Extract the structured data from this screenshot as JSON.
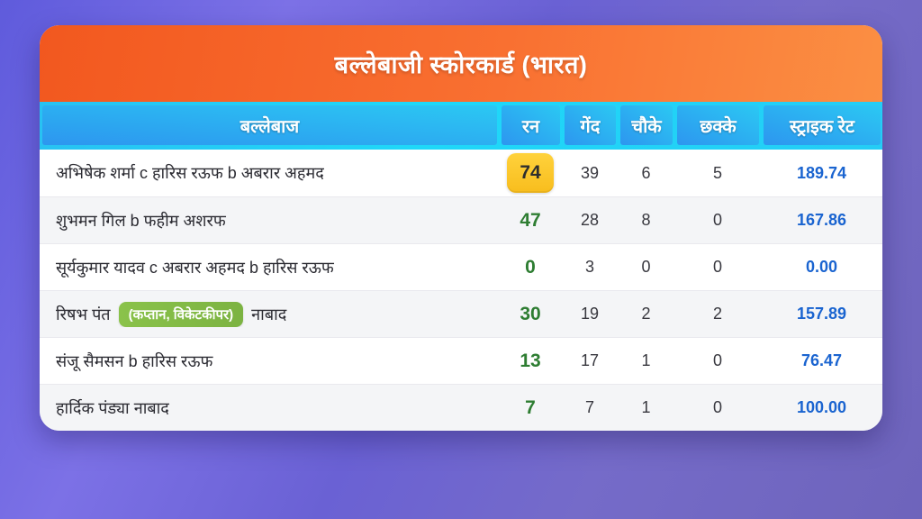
{
  "card": {
    "title": "बल्लेबाजी स्कोरकार्ड (भारत)"
  },
  "table": {
    "columns": [
      "बल्लेबाज",
      "रन",
      "गेंद",
      "चौके",
      "छक्के",
      "स्ट्राइक रेट"
    ],
    "rows": [
      {
        "name": "अभिषेक शर्मा c हारिस रऊफ b अबरार अहमद",
        "badge": "",
        "name_suffix": "",
        "runs": "74",
        "balls": "39",
        "fours": "6",
        "sixes": "5",
        "strike_rate": "189.74",
        "runs_highlighted": true
      },
      {
        "name": "शुभमन गिल b फहीम अशरफ",
        "badge": "",
        "name_suffix": "",
        "runs": "47",
        "balls": "28",
        "fours": "8",
        "sixes": "0",
        "strike_rate": "167.86",
        "runs_highlighted": false
      },
      {
        "name": "सूर्यकुमार यादव c अबरार अहमद b हारिस रऊफ",
        "badge": "",
        "name_suffix": "",
        "runs": "0",
        "balls": "3",
        "fours": "0",
        "sixes": "0",
        "strike_rate": "0.00",
        "runs_highlighted": false
      },
      {
        "name": "रिषभ पंत",
        "badge": "(कप्तान, विकेटकीपर)",
        "name_suffix": "नाबाद",
        "runs": "30",
        "balls": "19",
        "fours": "2",
        "sixes": "2",
        "strike_rate": "157.89",
        "runs_highlighted": false
      },
      {
        "name": "संजू सैमसन b हारिस रऊफ",
        "badge": "",
        "name_suffix": "",
        "runs": "13",
        "balls": "17",
        "fours": "1",
        "sixes": "0",
        "strike_rate": "76.47",
        "runs_highlighted": false
      },
      {
        "name": "हार्दिक पंड्या नाबाद",
        "badge": "",
        "name_suffix": "",
        "runs": "7",
        "balls": "7",
        "fours": "1",
        "sixes": "0",
        "strike_rate": "100.00",
        "runs_highlighted": false
      }
    ]
  },
  "colors": {
    "background_purple_start": "#5f5bdc",
    "background_purple_end": "#6e64bb",
    "header_orange_start": "#f2581f",
    "header_orange_end": "#fb8f43",
    "table_header_cyan": "#1fd8f8",
    "table_header_tile_blue": "#2d96ef",
    "runs_green": "#2e7d32",
    "strike_rate_blue": "#1a64d0",
    "highlight_gold": "#ffca28",
    "badge_green": "#7cb342",
    "row_alt_gray": "#f4f5f7"
  },
  "chart_data": {
    "type": "table",
    "title": "बल्लेबाजी स्कोरकार्ड (भारत)",
    "columns": [
      "बल्लेबाज",
      "रन",
      "गेंद",
      "चौके",
      "छक्के",
      "स्ट्राइक रेट"
    ],
    "rows": [
      [
        "अभिषेक शर्मा c हारिस रऊफ b अबरार अहमद",
        74,
        39,
        6,
        5,
        189.74
      ],
      [
        "शुभमन गिल b फहीम अशरफ",
        47,
        28,
        8,
        0,
        167.86
      ],
      [
        "सूर्यकुमार यादव c अबरार अहमद b हारिस रऊफ",
        0,
        3,
        0,
        0,
        0.0
      ],
      [
        "रिषभ पंत (कप्तान, विकेटकीपर) नाबाद",
        30,
        19,
        2,
        2,
        157.89
      ],
      [
        "संजू सैमसन b हारिस रऊफ",
        13,
        17,
        1,
        0,
        76.47
      ],
      [
        "हार्दिक पंड्या नाबाद",
        7,
        7,
        1,
        0,
        100.0
      ]
    ],
    "notes": "Top scorer (74) highlighted with gold chip; runs in green; strike rate in blue; captain/wicketkeeper badge on row 4"
  }
}
